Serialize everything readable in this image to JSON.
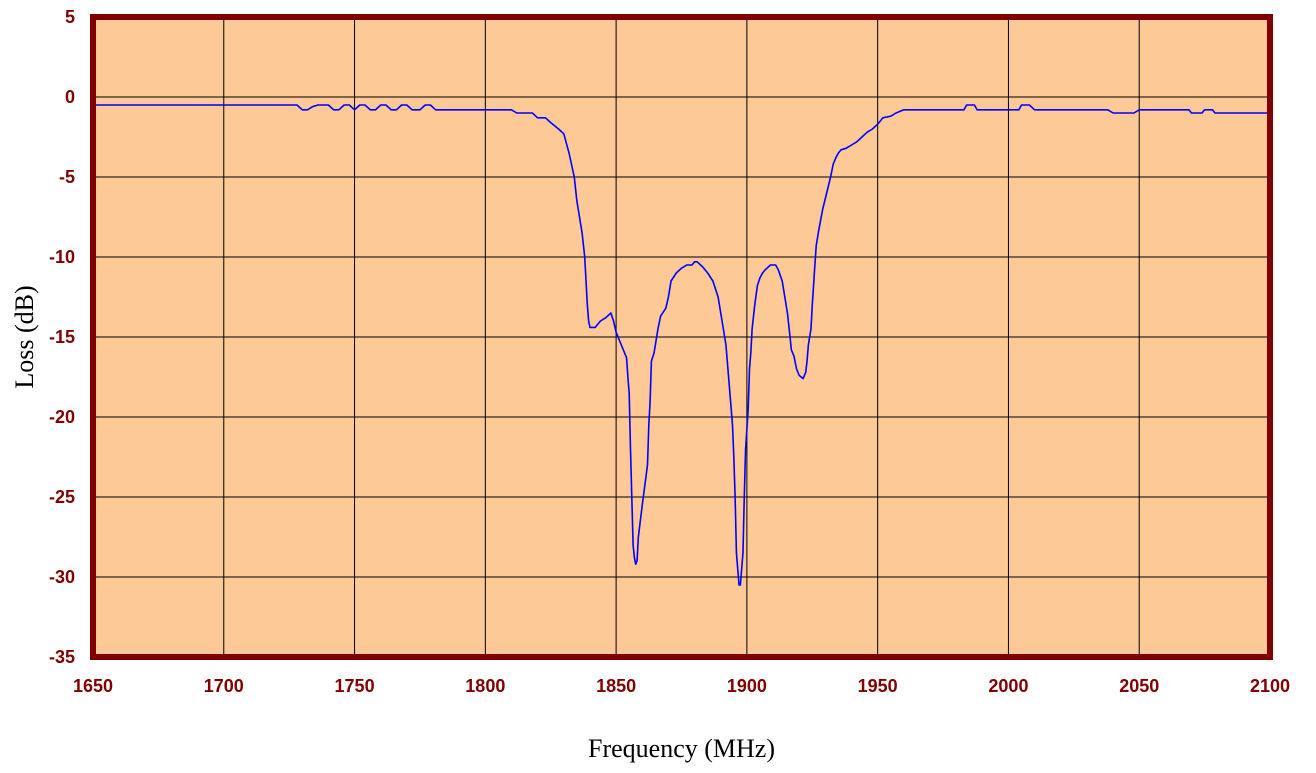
{
  "chart_data": {
    "type": "line",
    "title": "",
    "xlabel": "Frequency (MHz)",
    "ylabel": "Loss (dB)",
    "xlim": [
      1650,
      2100
    ],
    "ylim": [
      -35,
      5
    ],
    "x_ticks": [
      1650,
      1700,
      1750,
      1800,
      1850,
      1900,
      1950,
      2000,
      2050,
      2100
    ],
    "y_ticks": [
      5,
      0,
      -5,
      -10,
      -15,
      -20,
      -25,
      -30,
      -35
    ],
    "grid": true,
    "legend": "none",
    "series": [
      {
        "name": "",
        "color": "#0000ff",
        "points": [
          [
            1650,
            -0.5
          ],
          [
            1680,
            -0.5
          ],
          [
            1700,
            -0.5
          ],
          [
            1728,
            -0.5
          ],
          [
            1730,
            -0.8
          ],
          [
            1732,
            -0.8
          ],
          [
            1734,
            -0.6
          ],
          [
            1736,
            -0.5
          ],
          [
            1740,
            -0.5
          ],
          [
            1742,
            -0.8
          ],
          [
            1744,
            -0.8
          ],
          [
            1746,
            -0.5
          ],
          [
            1748,
            -0.5
          ],
          [
            1750,
            -0.8
          ],
          [
            1752,
            -0.5
          ],
          [
            1754,
            -0.5
          ],
          [
            1756,
            -0.8
          ],
          [
            1758,
            -0.8
          ],
          [
            1760,
            -0.5
          ],
          [
            1762,
            -0.5
          ],
          [
            1764,
            -0.8
          ],
          [
            1766,
            -0.8
          ],
          [
            1768,
            -0.5
          ],
          [
            1770,
            -0.5
          ],
          [
            1772,
            -0.8
          ],
          [
            1775,
            -0.8
          ],
          [
            1777,
            -0.5
          ],
          [
            1779,
            -0.5
          ],
          [
            1781,
            -0.8
          ],
          [
            1800,
            -0.8
          ],
          [
            1810,
            -0.8
          ],
          [
            1812,
            -1.0
          ],
          [
            1818,
            -1.0
          ],
          [
            1820,
            -1.3
          ],
          [
            1823,
            -1.3
          ],
          [
            1825,
            -1.6
          ],
          [
            1828,
            -2.0
          ],
          [
            1830,
            -2.3
          ],
          [
            1832,
            -3.5
          ],
          [
            1834,
            -5.0
          ],
          [
            1835,
            -6.5
          ],
          [
            1836,
            -7.5
          ],
          [
            1837,
            -8.5
          ],
          [
            1838,
            -10.0
          ],
          [
            1838.5,
            -11.5
          ],
          [
            1839,
            -13.0
          ],
          [
            1839.5,
            -14.0
          ],
          [
            1840,
            -14.4
          ],
          [
            1842,
            -14.4
          ],
          [
            1844,
            -14.0
          ],
          [
            1846,
            -13.8
          ],
          [
            1848,
            -13.5
          ],
          [
            1849,
            -14.0
          ],
          [
            1850,
            -14.7
          ],
          [
            1852,
            -15.5
          ],
          [
            1854,
            -16.3
          ],
          [
            1854.5,
            -17.5
          ],
          [
            1855,
            -18.5
          ],
          [
            1855.5,
            -22.0
          ],
          [
            1856,
            -25.0
          ],
          [
            1856.5,
            -28.0
          ],
          [
            1857,
            -28.8
          ],
          [
            1857.5,
            -29.2
          ],
          [
            1858,
            -29.0
          ],
          [
            1858.5,
            -27.5
          ],
          [
            1860,
            -25.5
          ],
          [
            1862,
            -23.0
          ],
          [
            1862.5,
            -20.5
          ],
          [
            1863,
            -19.0
          ],
          [
            1863.5,
            -16.5
          ],
          [
            1864.5,
            -16.0
          ],
          [
            1866,
            -14.5
          ],
          [
            1867,
            -13.7
          ],
          [
            1869,
            -13.2
          ],
          [
            1870,
            -12.5
          ],
          [
            1871,
            -11.5
          ],
          [
            1873,
            -11.0
          ],
          [
            1875,
            -10.7
          ],
          [
            1877,
            -10.5
          ],
          [
            1879,
            -10.5
          ],
          [
            1880,
            -10.3
          ],
          [
            1881,
            -10.3
          ],
          [
            1883,
            -10.6
          ],
          [
            1885,
            -11.0
          ],
          [
            1887,
            -11.5
          ],
          [
            1888,
            -12.0
          ],
          [
            1889,
            -12.5
          ],
          [
            1890,
            -13.5
          ],
          [
            1891,
            -14.5
          ],
          [
            1892,
            -15.5
          ],
          [
            1892.5,
            -16.5
          ],
          [
            1893.5,
            -18.5
          ],
          [
            1894,
            -19.5
          ],
          [
            1894.5,
            -20.5
          ],
          [
            1895,
            -22.5
          ],
          [
            1895.5,
            -25.0
          ],
          [
            1896,
            -28.5
          ],
          [
            1896.5,
            -29.5
          ],
          [
            1897,
            -30.5
          ],
          [
            1897.5,
            -30.5
          ],
          [
            1898,
            -29.5
          ],
          [
            1898.5,
            -28.5
          ],
          [
            1899,
            -25.0
          ],
          [
            1899.5,
            -22.0
          ],
          [
            1900.5,
            -19.5
          ],
          [
            1901,
            -17.0
          ],
          [
            1901.5,
            -16.0
          ],
          [
            1902,
            -14.5
          ],
          [
            1903,
            -13.0
          ],
          [
            1904,
            -11.8
          ],
          [
            1905,
            -11.3
          ],
          [
            1906,
            -11.0
          ],
          [
            1907,
            -10.8
          ],
          [
            1909,
            -10.5
          ],
          [
            1911,
            -10.5
          ],
          [
            1912,
            -10.8
          ],
          [
            1913.5,
            -11.5
          ],
          [
            1914.5,
            -12.5
          ],
          [
            1915.5,
            -13.5
          ],
          [
            1916.5,
            -15.0
          ],
          [
            1917,
            -15.8
          ],
          [
            1918,
            -16.2
          ],
          [
            1919,
            -17.0
          ],
          [
            1920,
            -17.4
          ],
          [
            1921.5,
            -17.6
          ],
          [
            1922.5,
            -17.2
          ],
          [
            1923,
            -16.5
          ],
          [
            1923.5,
            -15.5
          ],
          [
            1924.5,
            -14.5
          ],
          [
            1925,
            -13.0
          ],
          [
            1926,
            -10.5
          ],
          [
            1926.5,
            -9.3
          ],
          [
            1927.5,
            -8.3
          ],
          [
            1929,
            -7.0
          ],
          [
            1930.5,
            -6.0
          ],
          [
            1932,
            -5.0
          ],
          [
            1933,
            -4.2
          ],
          [
            1934,
            -3.8
          ],
          [
            1935,
            -3.5
          ],
          [
            1936,
            -3.3
          ],
          [
            1938,
            -3.2
          ],
          [
            1940,
            -3.0
          ],
          [
            1942,
            -2.8
          ],
          [
            1944,
            -2.5
          ],
          [
            1946,
            -2.2
          ],
          [
            1948,
            -2.0
          ],
          [
            1950,
            -1.7
          ],
          [
            1952,
            -1.3
          ],
          [
            1955,
            -1.2
          ],
          [
            1957,
            -1.0
          ],
          [
            1960,
            -0.8
          ],
          [
            1965,
            -0.8
          ],
          [
            1983,
            -0.8
          ],
          [
            1984,
            -0.5
          ],
          [
            1987,
            -0.5
          ],
          [
            1988,
            -0.8
          ],
          [
            2004,
            -0.8
          ],
          [
            2005,
            -0.5
          ],
          [
            2008,
            -0.5
          ],
          [
            2010,
            -0.8
          ],
          [
            2038,
            -0.8
          ],
          [
            2040,
            -1.0
          ],
          [
            2048,
            -1.0
          ],
          [
            2050,
            -0.8
          ],
          [
            2069,
            -0.8
          ],
          [
            2070,
            -1.0
          ],
          [
            2074,
            -1.0
          ],
          [
            2075,
            -0.8
          ],
          [
            2078,
            -0.8
          ],
          [
            2079,
            -1.0
          ],
          [
            2100,
            -1.0
          ]
        ]
      }
    ]
  },
  "colors": {
    "plot_background": "#fcc997",
    "frame": "#800000",
    "grid": "#000000",
    "tick_label": "#800000",
    "axis_title": "#000000",
    "series_line": "#0000ff"
  }
}
